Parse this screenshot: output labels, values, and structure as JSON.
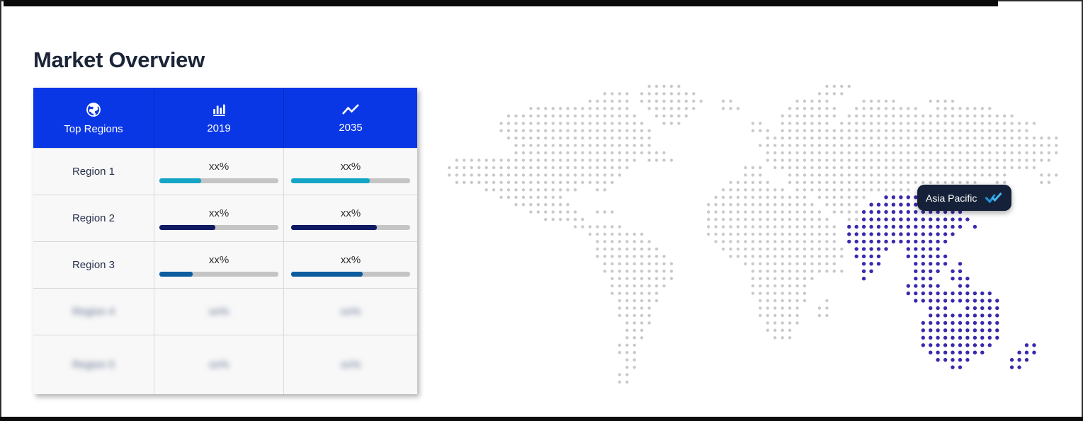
{
  "page": {
    "title": "Market Overview"
  },
  "table": {
    "header": [
      {
        "label": "Top Regions",
        "icon": "globe-icon"
      },
      {
        "label": "2019",
        "icon": "bar-chart-icon"
      },
      {
        "label": "2035",
        "icon": "trend-up-icon"
      }
    ],
    "rows": [
      {
        "region": "Region 1",
        "blurred": false,
        "cells": [
          {
            "label": "xx%",
            "pct": 35,
            "color": "#14a5c6"
          },
          {
            "label": "xx%",
            "pct": 66,
            "color": "#14a5c6"
          }
        ]
      },
      {
        "region": "Region 2",
        "blurred": false,
        "cells": [
          {
            "label": "xx%",
            "pct": 47,
            "color": "#101b63"
          },
          {
            "label": "xx%",
            "pct": 72,
            "color": "#101b63"
          }
        ]
      },
      {
        "region": "Region 3",
        "blurred": false,
        "cells": [
          {
            "label": "xx%",
            "pct": 28,
            "color": "#0c5c9e"
          },
          {
            "label": "xx%",
            "pct": 60,
            "color": "#0c5c9e"
          }
        ]
      },
      {
        "region": "Region 4",
        "blurred": true,
        "cells": [
          {
            "label": "xx%"
          },
          {
            "label": "xx%"
          }
        ]
      },
      {
        "region": "Region 5",
        "blurred": true,
        "cells": [
          {
            "label": "xx%"
          },
          {
            "label": "xx%"
          }
        ]
      }
    ]
  },
  "map": {
    "tooltip": {
      "label": "Asia Pacific",
      "icon": "double-check-icon"
    },
    "highlight_region": "Asia Pacific",
    "dot_colors": {
      "base": "#c9c9c9",
      "highlight": "#3929ac"
    },
    "grid": [
      "                            .....                   ....",
      "                      .... ........                ....",
      "                    ...... .........  ..        .....    .....    ....",
      "            ..............  .......   ...      .......  .........  ........",
      "         ..................  .....            ........ .......................",
      "        ....................  ...         ..  ....... ...........................",
      "        .....................             ... ..................................",
      "         ....................               ........................................",
      "          ...................              .........................................",
      "          .....................             ........................................",
      "  ......................... ....            .......................................",
      " .........................               ... ....................................",
      " ........................                ...   ..............................    ...",
      "  ......................               ......  ..........................  ..    ..",
      "      .............  ..               ......... ................          ..",
      "        .........                    ............. .......  XXXXX         ..",
      "          ........                  ............... ..... XXXXXXXXXXX",
      "            .......  ...            ................ ....XXXXXXXXXXXXXX",
      "              ......                .................  ..XXXXXXXXXXXXXXX",
      "                  .......           .................. XXXXXXXXXXXXXXXX X",
      "                    ........        .................. XXXXXXXXXXXXXXX",
      "                     ........        ................. XXXXXXXXXXXXXX",
      "                     .........        ................. XXXXX  XXXXX",
      "                     ..........        ................ XXXX   XXXXXX",
      "                      ..........         .............   XXX    XXXXX X",
      "                      ..........          .............  XX     XXXX XX",
      "                       .........          .........      X      XXX  XXX",
      "                       ........           ........             XXXXX  XX",
      "                       .......            ........             XXXXXXXXXXXX",
      "                        ......             .......  .           XXXXXXXXXXXX",
      "                        .....              ......  ..             XXX  XXXXX",
      "                        .....              ......  ..             XXXXXXXXXX",
      "                         ....               .....                XXXXXXXXXXX",
      "                         ...                ....                 XXXXXXXXXXX",
      "                         ...                 ...                 XXXXXXXXXXX",
      "                        ...                                      XXXXXXXXXX    XX",
      "                        ...                                       XXXXXXXX    XXX",
      "                         ..                                        XXXXX     XXX",
      "                         ..                                          XX      XX",
      "                        ..",
      "                        .."
    ]
  }
}
